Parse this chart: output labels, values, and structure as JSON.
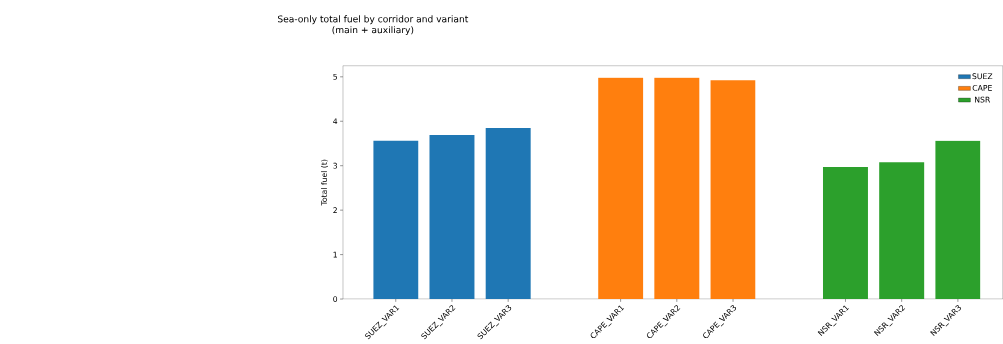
{
  "chart_data": {
    "type": "bar",
    "title": "Sea-only total fuel by corridor and variant\n(main + auxiliary)",
    "ylabel": "Total fuel (t)",
    "categories": [
      "SUEZ_VAR1",
      "SUEZ_VAR2",
      "SUEZ_VAR3",
      null,
      "CAPE_VAR1",
      "CAPE_VAR2",
      "CAPE_VAR3",
      null,
      "NSR_VAR1",
      "NSR_VAR2",
      "NSR_VAR3"
    ],
    "series": [
      {
        "name": "SUEZ",
        "color": "#1f77b4",
        "values": [
          3.56,
          3.69,
          3.85,
          null,
          null,
          null,
          null,
          null,
          null,
          null,
          null
        ]
      },
      {
        "name": "CAPE",
        "color": "#ff7f0e",
        "values": [
          null,
          null,
          null,
          null,
          4.98,
          4.98,
          4.92,
          null,
          null,
          null,
          null
        ]
      },
      {
        "name": "NSR",
        "color": "#2ca02c",
        "values": [
          null,
          null,
          null,
          null,
          null,
          null,
          null,
          null,
          2.97,
          3.08,
          3.56
        ]
      }
    ],
    "ylim": [
      0,
      5.25
    ],
    "yticks": [
      0,
      1,
      2,
      3,
      4,
      5
    ],
    "legend": "top right",
    "grid": false
  }
}
